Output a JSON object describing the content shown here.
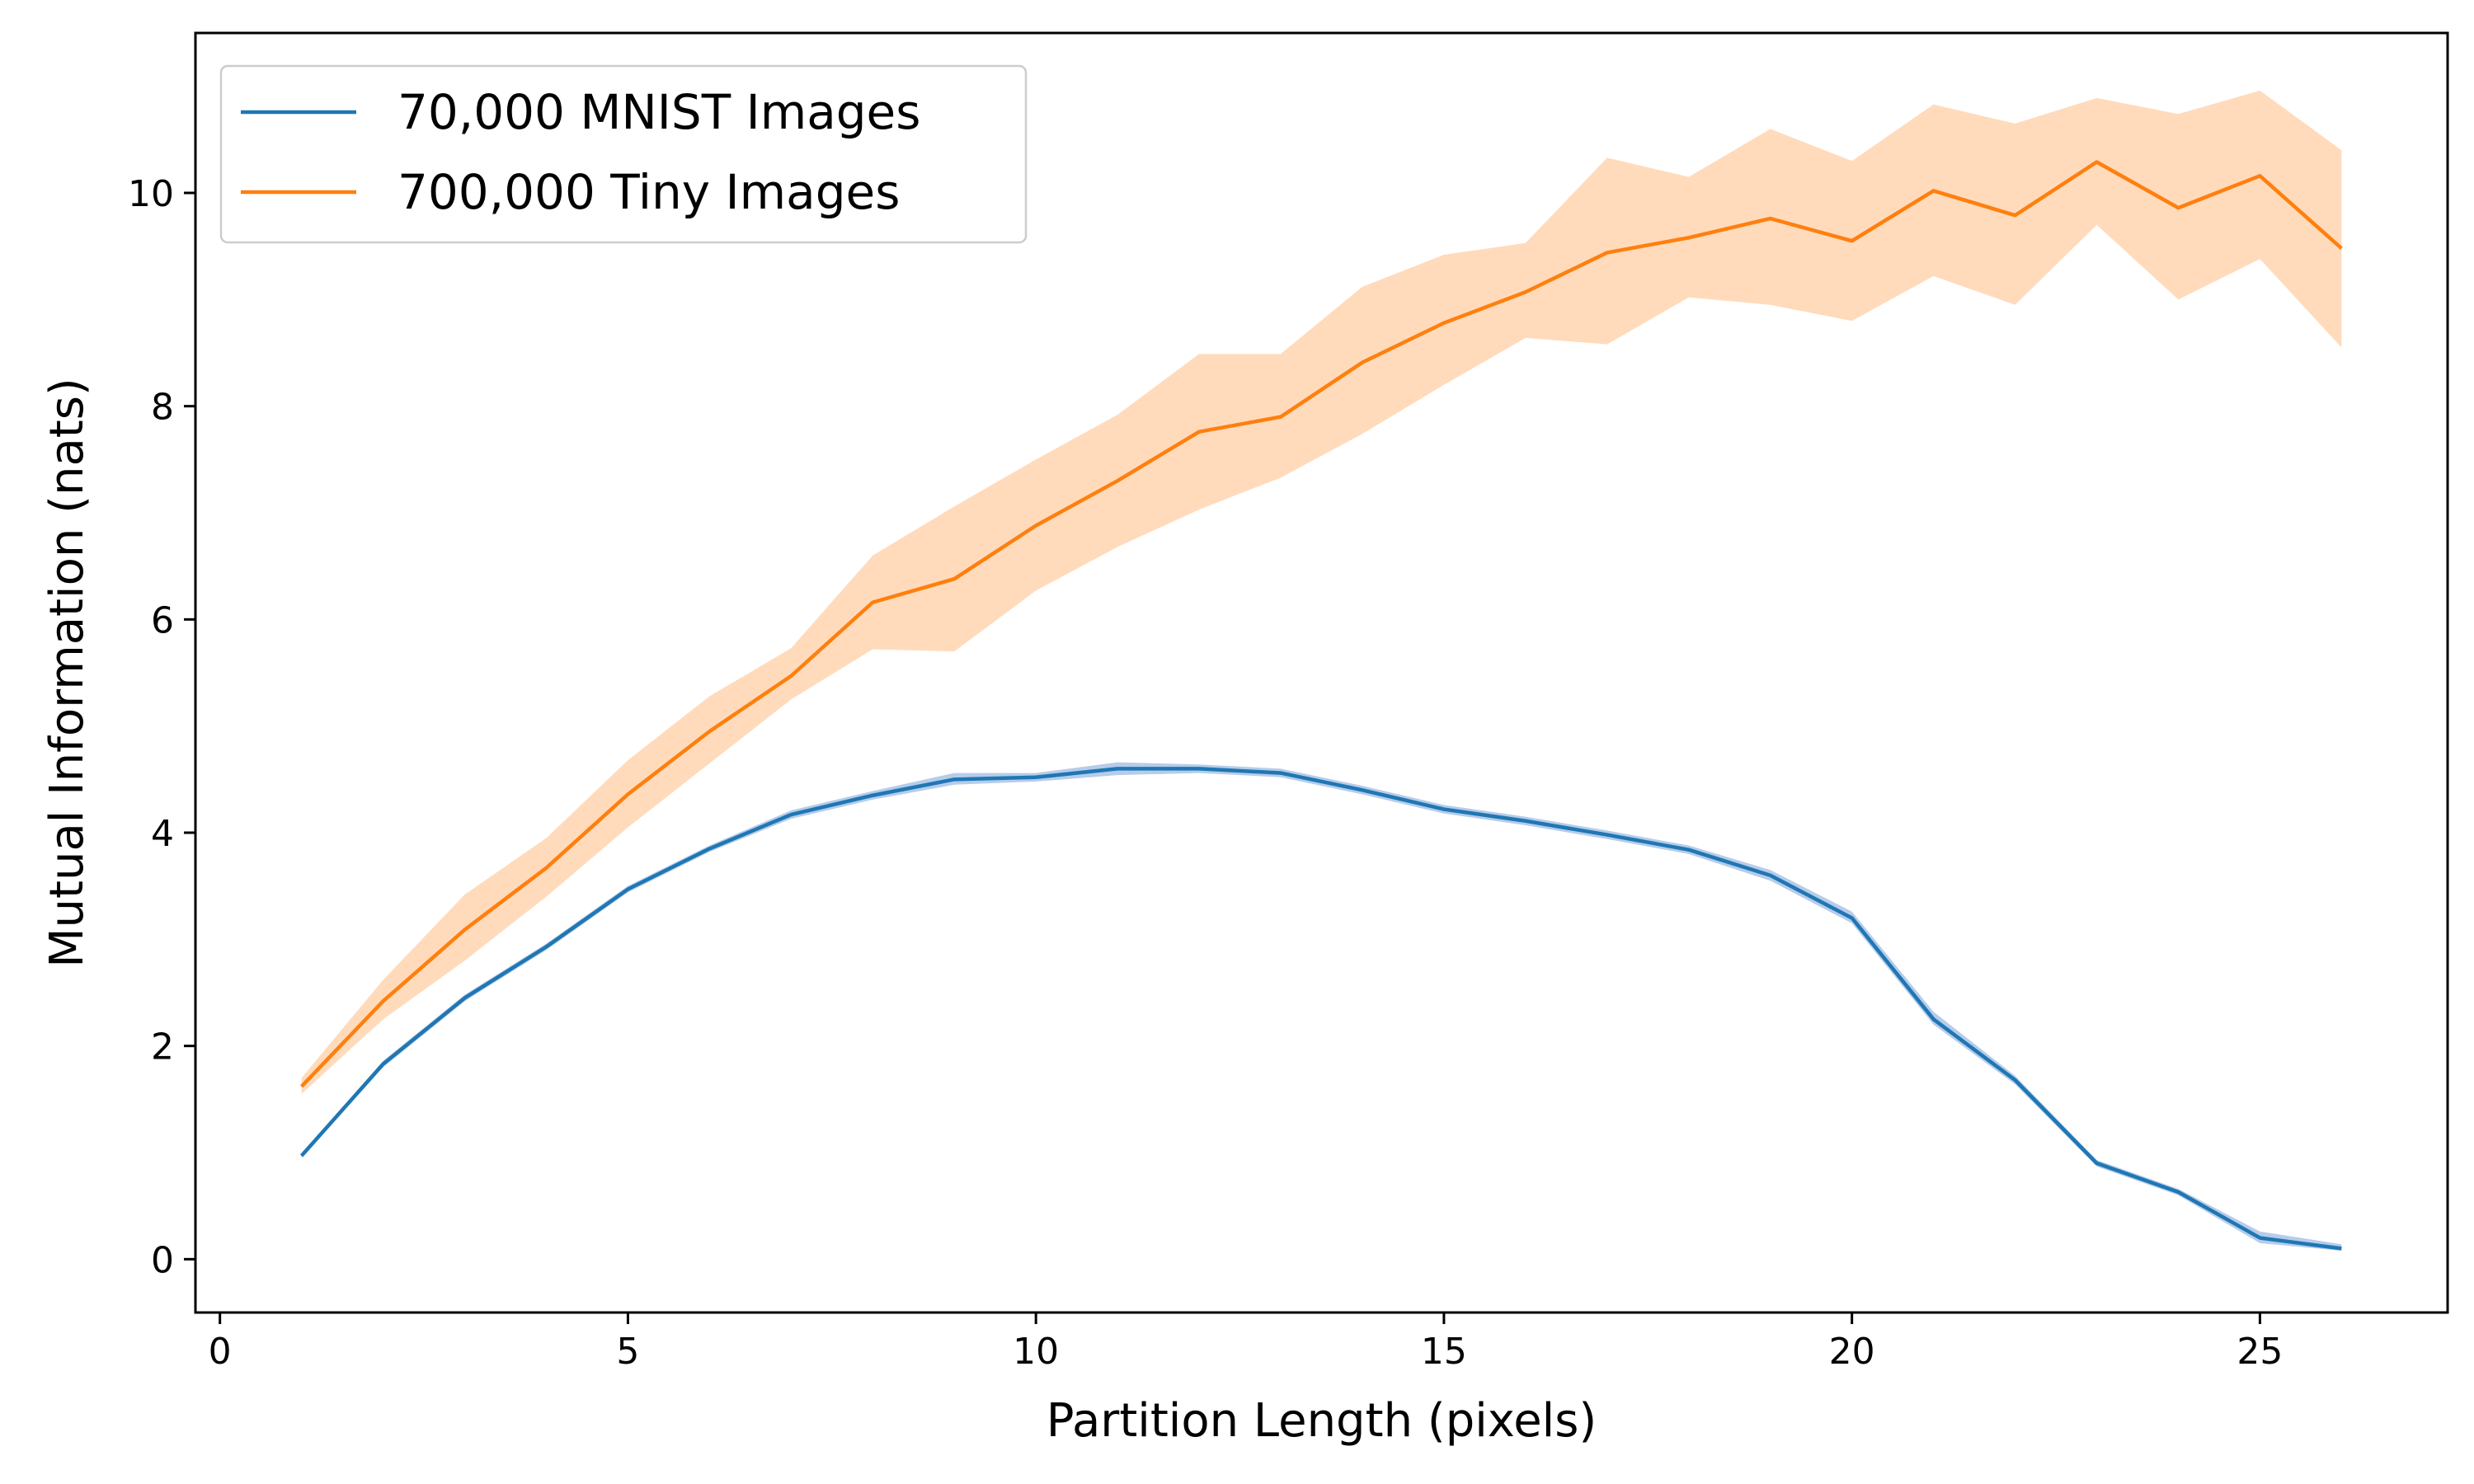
{
  "chart_data": {
    "type": "line",
    "title": "",
    "xlabel": "Partition Length (pixels)",
    "ylabel": "Mutual Information (nats)",
    "xlim": [
      -0.3,
      27.3
    ],
    "ylim": [
      -0.5,
      11.5
    ],
    "xticks": [
      0,
      5,
      10,
      15,
      20,
      25
    ],
    "yticks": [
      0,
      2,
      4,
      6,
      8,
      10
    ],
    "grid": false,
    "legend_position": "top-left",
    "series": [
      {
        "name": "70,000 MNIST Images",
        "color": "#1f77b4",
        "band_color": "#aec7e8",
        "x": [
          1,
          2,
          3,
          4,
          5,
          6,
          7,
          8,
          9,
          10,
          11,
          12,
          13,
          14,
          15,
          16,
          17,
          18,
          19,
          20,
          21,
          22,
          23,
          24,
          25,
          26
        ],
        "y": [
          0.97,
          1.83,
          2.45,
          2.93,
          3.47,
          3.85,
          4.17,
          4.35,
          4.5,
          4.52,
          4.6,
          4.6,
          4.56,
          4.4,
          4.22,
          4.11,
          3.98,
          3.84,
          3.6,
          3.2,
          2.25,
          1.68,
          0.9,
          0.63,
          0.2,
          0.1
        ],
        "lower": [
          0.95,
          1.8,
          2.42,
          2.9,
          3.44,
          3.82,
          4.13,
          4.31,
          4.45,
          4.48,
          4.54,
          4.56,
          4.52,
          4.36,
          4.18,
          4.07,
          3.94,
          3.8,
          3.55,
          3.15,
          2.2,
          1.64,
          0.87,
          0.6,
          0.15,
          0.08
        ],
        "upper": [
          0.99,
          1.86,
          2.48,
          2.96,
          3.5,
          3.88,
          4.21,
          4.39,
          4.56,
          4.56,
          4.66,
          4.64,
          4.6,
          4.44,
          4.26,
          4.15,
          4.02,
          3.88,
          3.65,
          3.26,
          2.32,
          1.72,
          0.93,
          0.66,
          0.26,
          0.14
        ]
      },
      {
        "name": "700,000 Tiny Images",
        "color": "#ff7f0e",
        "band_color": "#ffd7b5",
        "x": [
          1,
          2,
          3,
          4,
          5,
          6,
          7,
          8,
          9,
          10,
          11,
          12,
          13,
          14,
          15,
          16,
          17,
          18,
          19,
          20,
          21,
          22,
          23,
          24,
          25,
          26
        ],
        "y": [
          1.62,
          2.42,
          3.09,
          3.67,
          4.36,
          4.95,
          5.47,
          6.16,
          6.38,
          6.88,
          7.3,
          7.76,
          7.9,
          8.41,
          8.78,
          9.07,
          9.44,
          9.58,
          9.76,
          9.55,
          10.02,
          9.79,
          10.29,
          9.86,
          10.16,
          9.48
        ],
        "lower": [
          1.55,
          2.25,
          2.8,
          3.4,
          4.05,
          4.65,
          5.25,
          5.72,
          5.7,
          6.27,
          6.68,
          7.03,
          7.33,
          7.74,
          8.2,
          8.64,
          8.58,
          9.02,
          8.95,
          8.8,
          9.22,
          8.95,
          9.7,
          9.0,
          9.38,
          8.55
        ],
        "upper": [
          1.7,
          2.62,
          3.42,
          3.95,
          4.68,
          5.28,
          5.73,
          6.6,
          7.06,
          7.5,
          7.92,
          8.49,
          8.49,
          9.12,
          9.42,
          9.53,
          10.33,
          10.15,
          10.6,
          10.3,
          10.83,
          10.65,
          10.89,
          10.74,
          10.96,
          10.4
        ]
      }
    ]
  }
}
